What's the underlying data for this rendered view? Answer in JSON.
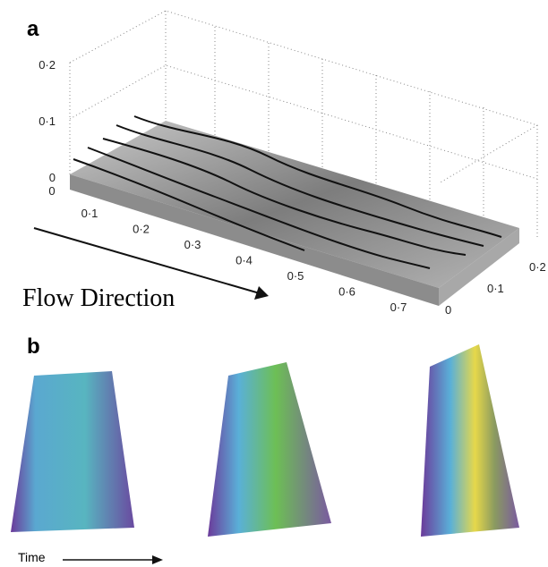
{
  "panel_a": {
    "label": "a",
    "z_ticks": [
      "0·2",
      "0·1",
      "0"
    ],
    "x_ticks": [
      "0",
      "0·1",
      "0·2",
      "0·3",
      "0·4",
      "0·5",
      "0·6",
      "0·7"
    ],
    "y_ticks": [
      "0",
      "0·1",
      "0·2"
    ],
    "annotation": "Flow Direction"
  },
  "panel_b": {
    "label": "b",
    "annotation": "Time"
  }
}
